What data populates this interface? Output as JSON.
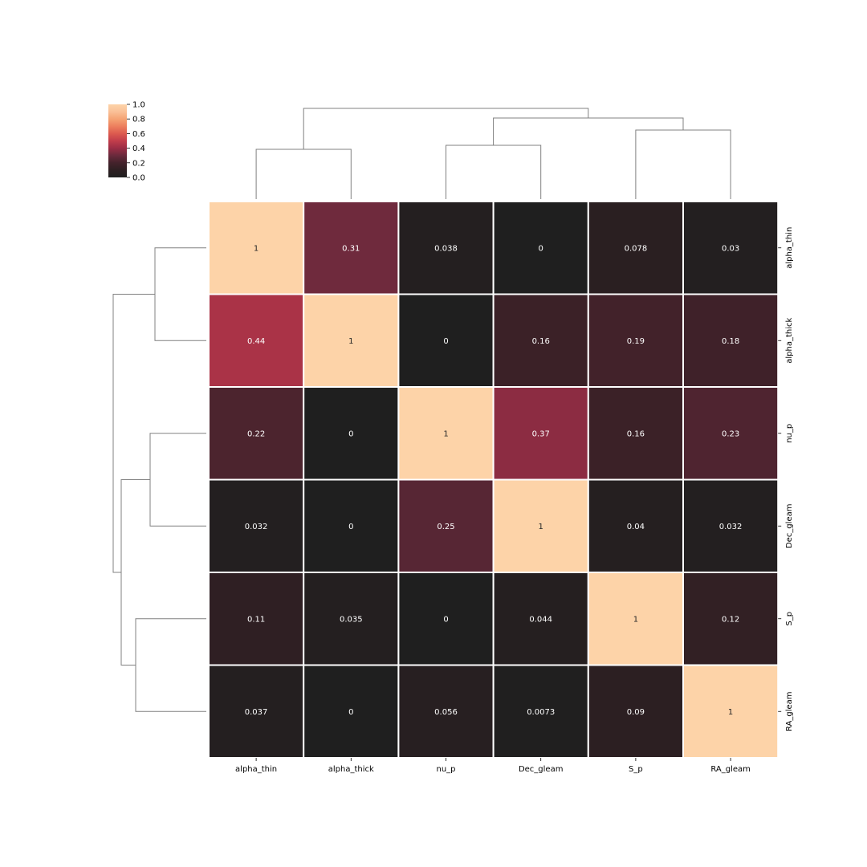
{
  "chart_data": {
    "type": "heatmap",
    "title": "",
    "xlabel": "",
    "ylabel": "",
    "x_labels": [
      "alpha_thin",
      "alpha_thick",
      "nu_p",
      "Dec_gleam",
      "S_p",
      "RA_gleam"
    ],
    "y_labels": [
      "alpha_thin",
      "alpha_thick",
      "nu_p",
      "Dec_gleam",
      "S_p",
      "RA_gleam"
    ],
    "values": [
      [
        1,
        0.31,
        0.038,
        0,
        0.078,
        0.03
      ],
      [
        0.44,
        1,
        0,
        0.16,
        0.19,
        0.18
      ],
      [
        0.22,
        0,
        1,
        0.37,
        0.16,
        0.23
      ],
      [
        0.032,
        0,
        0.25,
        1,
        0.04,
        0.032
      ],
      [
        0.11,
        0.035,
        0,
        0.044,
        1,
        0.12
      ],
      [
        0.037,
        0,
        0.056,
        0.0073,
        0.09,
        1
      ]
    ],
    "annotations": [
      [
        "1",
        "0.31",
        "0.038",
        "0",
        "0.078",
        "0.03"
      ],
      [
        "0.44",
        "1",
        "0",
        "0.16",
        "0.19",
        "0.18"
      ],
      [
        "0.22",
        "0",
        "1",
        "0.37",
        "0.16",
        "0.23"
      ],
      [
        "0.032",
        "0",
        "0.25",
        "1",
        "0.04",
        "0.032"
      ],
      [
        "0.11",
        "0.035",
        "0",
        "0.044",
        "1",
        "0.12"
      ],
      [
        "0.037",
        "0",
        "0.056",
        "0.0073",
        "0.09",
        "1"
      ]
    ],
    "colorbar": {
      "ticks": [
        "0.0",
        "0.2",
        "0.4",
        "0.6",
        "0.8",
        "1.0"
      ],
      "vmin": 0,
      "vmax": 1,
      "placement": "top-left"
    },
    "colormap_stops": [
      {
        "value": 0.0,
        "color": "#1f1f1f"
      },
      {
        "value": 0.1,
        "color": "#2d1f22"
      },
      {
        "value": 0.2,
        "color": "#44222b"
      },
      {
        "value": 0.3,
        "color": "#6a2a3c"
      },
      {
        "value": 0.4,
        "color": "#9b2d45"
      },
      {
        "value": 0.5,
        "color": "#c13d4b"
      },
      {
        "value": 0.6,
        "color": "#dc5a4f"
      },
      {
        "value": 0.7,
        "color": "#ed7f5e"
      },
      {
        "value": 0.8,
        "color": "#f5a374"
      },
      {
        "value": 0.9,
        "color": "#fac097"
      },
      {
        "value": 1.0,
        "color": "#fdd3a8"
      }
    ],
    "cell_border_color": "#ffffff",
    "dendrogram_color": "#808080",
    "grid": false,
    "col_dendrogram": "top",
    "row_dendrogram": "left"
  }
}
